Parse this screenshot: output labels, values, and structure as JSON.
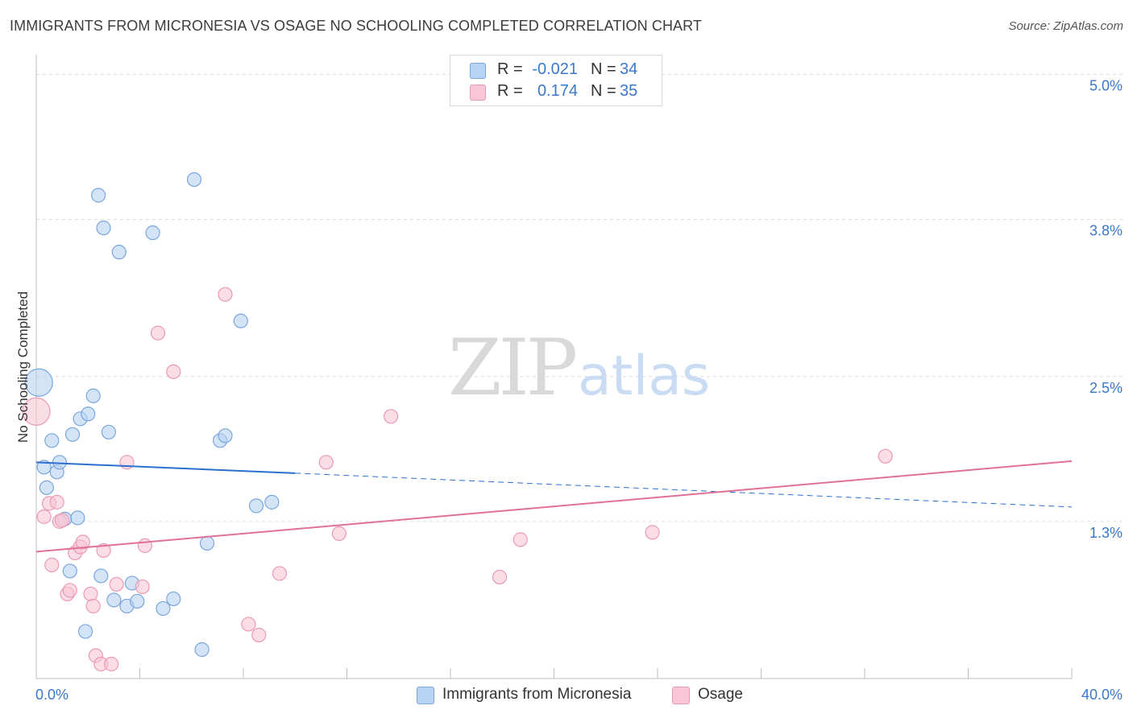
{
  "title": "IMMIGRANTS FROM MICRONESIA VS OSAGE NO SCHOOLING COMPLETED CORRELATION CHART",
  "source": "Source: ZipAtlas.com",
  "watermark": {
    "zip": "ZIP",
    "atlas": "atlas"
  },
  "legend": {
    "series1": {
      "r_label": "R =",
      "r_value": "-0.021",
      "n_label": "N =",
      "n_value": "34"
    },
    "series2": {
      "r_label": "R =",
      "r_value": "0.174",
      "n_label": "N =",
      "n_value": "35"
    }
  },
  "bottom_legend": {
    "series1": "Immigrants from Micronesia",
    "series2": "Osage"
  },
  "colors": {
    "blue_fill": "#b8d2f2",
    "blue_stroke": "#7aa6dc",
    "blue_line": "#2a6fcf",
    "pink_fill": "#f8c6d6",
    "pink_stroke": "#eb9ab4",
    "pink_line": "#e0709a",
    "axis_label": "#3a78c9",
    "grid": "#dddddd"
  },
  "chart_data": {
    "type": "scatter",
    "title": "IMMIGRANTS FROM MICRONESIA VS OSAGE NO SCHOOLING COMPLETED CORRELATION CHART",
    "xlabel": "",
    "ylabel": "No Schooling Completed",
    "xlim": [
      0,
      40
    ],
    "ylim": [
      0,
      5.15
    ],
    "x_tick_labels": [
      "0.0%",
      "40.0%"
    ],
    "y_ticks": [
      1.3,
      2.5,
      3.8,
      5.0
    ],
    "y_tick_labels": [
      "1.3%",
      "2.5%",
      "3.8%",
      "5.0%"
    ],
    "grid": true,
    "series": [
      {
        "name": "Immigrants from Micronesia",
        "r": -0.021,
        "n": 34,
        "trend": {
          "x": [
            0,
            10,
            40
          ],
          "y": [
            1.79,
            1.7,
            1.42
          ],
          "solid_until": 10
        },
        "points": [
          {
            "x": 0.1,
            "y": 2.45,
            "big": true
          },
          {
            "x": 0.3,
            "y": 1.75
          },
          {
            "x": 0.4,
            "y": 1.58
          },
          {
            "x": 0.6,
            "y": 1.97
          },
          {
            "x": 0.8,
            "y": 1.71
          },
          {
            "x": 0.9,
            "y": 1.79
          },
          {
            "x": 1.1,
            "y": 1.32
          },
          {
            "x": 1.3,
            "y": 0.89
          },
          {
            "x": 1.4,
            "y": 2.02
          },
          {
            "x": 1.6,
            "y": 1.33
          },
          {
            "x": 1.7,
            "y": 2.15
          },
          {
            "x": 1.9,
            "y": 0.39
          },
          {
            "x": 2.0,
            "y": 2.19
          },
          {
            "x": 2.2,
            "y": 2.34
          },
          {
            "x": 2.4,
            "y": 4.0
          },
          {
            "x": 2.5,
            "y": 0.85
          },
          {
            "x": 2.6,
            "y": 3.73
          },
          {
            "x": 2.8,
            "y": 2.04
          },
          {
            "x": 3.0,
            "y": 0.65
          },
          {
            "x": 3.2,
            "y": 3.53
          },
          {
            "x": 3.5,
            "y": 0.6
          },
          {
            "x": 3.7,
            "y": 0.79
          },
          {
            "x": 3.9,
            "y": 0.64
          },
          {
            "x": 4.5,
            "y": 3.69
          },
          {
            "x": 4.9,
            "y": 0.58
          },
          {
            "x": 5.3,
            "y": 0.66
          },
          {
            "x": 6.1,
            "y": 4.13
          },
          {
            "x": 6.4,
            "y": 0.24
          },
          {
            "x": 6.6,
            "y": 1.12
          },
          {
            "x": 7.1,
            "y": 1.97
          },
          {
            "x": 7.3,
            "y": 2.01
          },
          {
            "x": 7.9,
            "y": 2.96
          },
          {
            "x": 8.5,
            "y": 1.43
          },
          {
            "x": 9.1,
            "y": 1.46
          }
        ]
      },
      {
        "name": "Osage",
        "r": 0.174,
        "n": 35,
        "trend": {
          "x": [
            0,
            40
          ],
          "y": [
            1.05,
            1.8
          ]
        },
        "points": [
          {
            "x": 0.0,
            "y": 2.21,
            "big": true
          },
          {
            "x": 0.3,
            "y": 1.34
          },
          {
            "x": 0.5,
            "y": 1.45
          },
          {
            "x": 0.6,
            "y": 0.94
          },
          {
            "x": 0.8,
            "y": 1.46
          },
          {
            "x": 0.9,
            "y": 1.3
          },
          {
            "x": 1.0,
            "y": 1.31
          },
          {
            "x": 1.2,
            "y": 0.7
          },
          {
            "x": 1.3,
            "y": 0.73
          },
          {
            "x": 1.5,
            "y": 1.04
          },
          {
            "x": 1.7,
            "y": 1.09
          },
          {
            "x": 1.8,
            "y": 1.13
          },
          {
            "x": 2.1,
            "y": 0.7
          },
          {
            "x": 2.2,
            "y": 0.6
          },
          {
            "x": 2.3,
            "y": 0.19
          },
          {
            "x": 2.5,
            "y": 0.12
          },
          {
            "x": 2.6,
            "y": 1.06
          },
          {
            "x": 2.9,
            "y": 0.12
          },
          {
            "x": 3.1,
            "y": 0.78
          },
          {
            "x": 3.5,
            "y": 1.79
          },
          {
            "x": 4.1,
            "y": 0.76
          },
          {
            "x": 4.2,
            "y": 1.1
          },
          {
            "x": 4.7,
            "y": 2.86
          },
          {
            "x": 5.3,
            "y": 2.54
          },
          {
            "x": 7.3,
            "y": 3.18
          },
          {
            "x": 8.2,
            "y": 0.45
          },
          {
            "x": 8.6,
            "y": 0.36
          },
          {
            "x": 9.4,
            "y": 0.87
          },
          {
            "x": 11.2,
            "y": 1.79
          },
          {
            "x": 11.7,
            "y": 1.2
          },
          {
            "x": 13.7,
            "y": 2.17
          },
          {
            "x": 17.9,
            "y": 0.84
          },
          {
            "x": 18.7,
            "y": 1.15
          },
          {
            "x": 23.8,
            "y": 1.21
          },
          {
            "x": 32.8,
            "y": 1.84
          }
        ]
      }
    ]
  }
}
